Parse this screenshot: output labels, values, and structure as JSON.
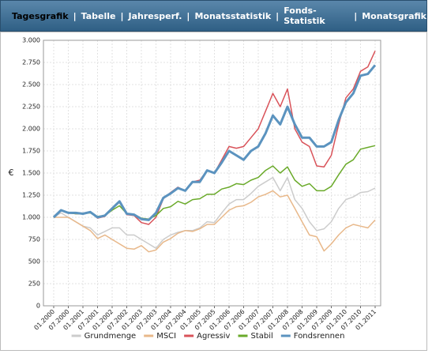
{
  "tabs": [
    "Tagesgrafik",
    "Tabelle",
    "Jahresperf.",
    "Monatsstatistik",
    "Fonds-Statistik",
    "Monatsgrafik"
  ],
  "chart_data": {
    "type": "line",
    "ylabel": "€",
    "ylim": [
      0,
      3000
    ],
    "yticks": [
      0,
      250,
      500,
      750,
      {
        "value": 1000,
        "label": "1.000"
      },
      {
        "value": 1250,
        "label": "1.250"
      },
      {
        "value": 1500,
        "label": "1.500"
      },
      {
        "value": 1750,
        "label": "1.750"
      },
      {
        "value": 2000,
        "label": "2.000"
      },
      {
        "value": 2250,
        "label": "2.250"
      },
      {
        "value": 2500,
        "label": "2.500"
      },
      {
        "value": 2750,
        "label": "2.750"
      },
      {
        "value": 3000,
        "label": "3.000"
      }
    ],
    "xticks": [
      "01.2000",
      "07.2000",
      "01.2001",
      "07.2001",
      "01.2002",
      "07.2002",
      "01.2003",
      "07.2003",
      "01.2004",
      "07.2004",
      "01.2005",
      "07.2005",
      "01.2006",
      "07.2006",
      "01.2007",
      "07.2007",
      "01.2008",
      "07.2008",
      "01.2009",
      "07.2009",
      "01.2010",
      "07.2010",
      "01.2011"
    ],
    "grid": true,
    "legend": "bottom",
    "x": [
      "01.2000",
      "04.2000",
      "07.2000",
      "10.2000",
      "01.2001",
      "04.2001",
      "07.2001",
      "10.2001",
      "01.2002",
      "04.2002",
      "07.2002",
      "10.2002",
      "01.2003",
      "04.2003",
      "07.2003",
      "10.2003",
      "01.2004",
      "04.2004",
      "07.2004",
      "10.2004",
      "01.2005",
      "04.2005",
      "07.2005",
      "10.2005",
      "01.2006",
      "04.2006",
      "07.2006",
      "10.2006",
      "01.2007",
      "04.2007",
      "07.2007",
      "10.2007",
      "01.2008",
      "04.2008",
      "07.2008",
      "10.2008",
      "01.2009",
      "04.2009",
      "07.2009",
      "10.2009",
      "01.2010",
      "04.2010",
      "07.2010",
      "10.2010",
      "01.2011"
    ],
    "series": [
      {
        "name": "Grundmenge",
        "color": "#cccccc",
        "values": [
          1000,
          1050,
          1000,
          950,
          900,
          880,
          800,
          840,
          880,
          880,
          800,
          800,
          750,
          700,
          650,
          750,
          800,
          830,
          850,
          850,
          880,
          950,
          940,
          1050,
          1150,
          1200,
          1200,
          1270,
          1350,
          1400,
          1450,
          1300,
          1450,
          1200,
          1100,
          950,
          850,
          870,
          950,
          1100,
          1200,
          1230,
          1280,
          1290,
          1330
        ]
      },
      {
        "name": "MSCI",
        "color": "#e8b88a",
        "values": [
          1000,
          1000,
          1000,
          950,
          900,
          850,
          760,
          800,
          750,
          700,
          650,
          640,
          680,
          610,
          630,
          720,
          760,
          820,
          850,
          840,
          870,
          920,
          920,
          1000,
          1080,
          1120,
          1130,
          1170,
          1230,
          1260,
          1300,
          1230,
          1250,
          1100,
          950,
          800,
          780,
          620,
          700,
          800,
          880,
          920,
          900,
          880,
          970
        ]
      },
      {
        "name": "Agressiv",
        "color": "#d9535a",
        "values": [
          1000,
          1080,
          1050,
          1040,
          1040,
          1060,
          990,
          1010,
          1100,
          1170,
          1030,
          1020,
          940,
          920,
          1000,
          1210,
          1280,
          1340,
          1300,
          1400,
          1420,
          1530,
          1500,
          1650,
          1800,
          1780,
          1800,
          1900,
          2000,
          2200,
          2400,
          2250,
          2450,
          2000,
          1850,
          1800,
          1580,
          1570,
          1700,
          2050,
          2350,
          2450,
          2650,
          2700,
          2880
        ]
      },
      {
        "name": "Stabil",
        "color": "#6aaa2a",
        "values": [
          1000,
          1080,
          1050,
          1040,
          1040,
          1050,
          1010,
          1020,
          1080,
          1130,
          1040,
          1030,
          990,
          980,
          1020,
          1100,
          1120,
          1180,
          1150,
          1200,
          1210,
          1260,
          1260,
          1320,
          1340,
          1380,
          1370,
          1420,
          1450,
          1530,
          1580,
          1500,
          1570,
          1420,
          1350,
          1380,
          1300,
          1300,
          1350,
          1480,
          1600,
          1650,
          1770,
          1790,
          1810
        ]
      },
      {
        "name": "Fondsrennen",
        "color": "#5b93bf",
        "values": [
          1000,
          1080,
          1050,
          1050,
          1040,
          1060,
          1000,
          1020,
          1100,
          1180,
          1040,
          1030,
          980,
          970,
          1050,
          1220,
          1270,
          1330,
          1300,
          1400,
          1400,
          1530,
          1500,
          1620,
          1750,
          1700,
          1650,
          1750,
          1800,
          1950,
          2150,
          2050,
          2250,
          2050,
          1900,
          1900,
          1800,
          1800,
          1850,
          2100,
          2300,
          2400,
          2600,
          2620,
          2720
        ]
      }
    ]
  }
}
